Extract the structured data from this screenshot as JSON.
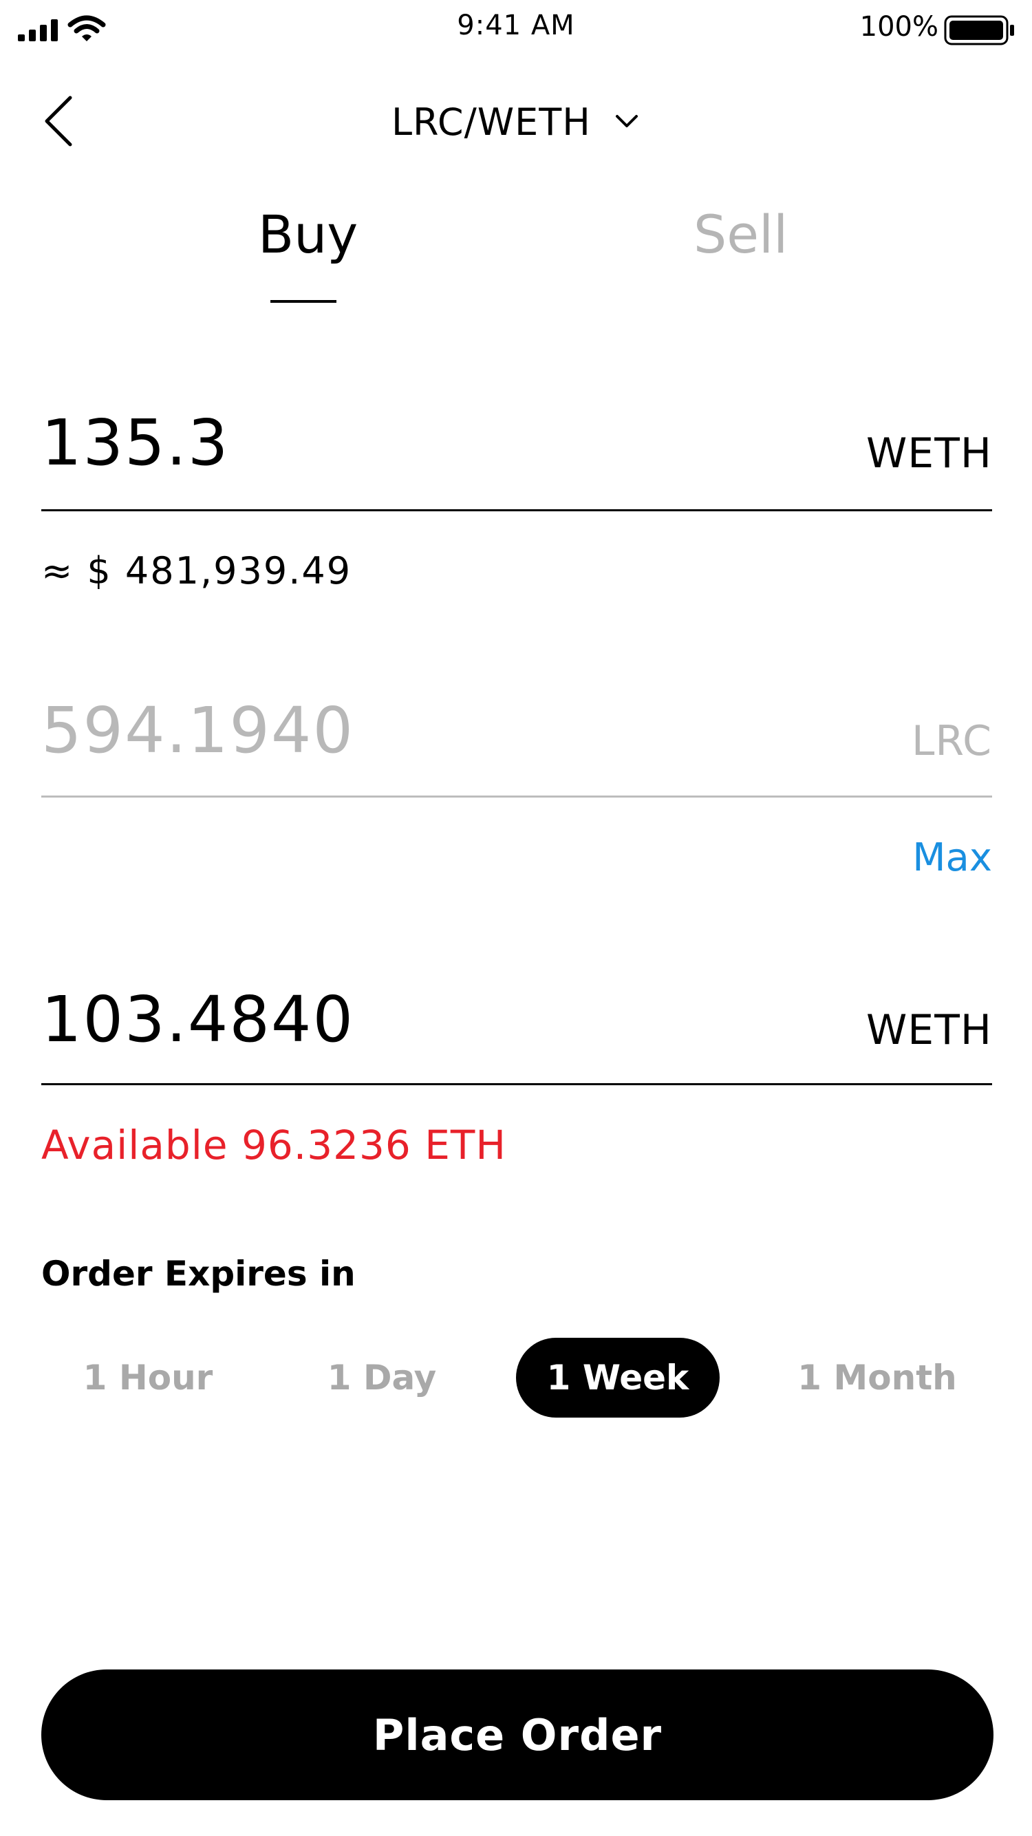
{
  "status_bar": {
    "time": "9:41 AM",
    "battery_percent": "100%",
    "icons": [
      "signal-icon",
      "wifi-icon",
      "battery-icon"
    ]
  },
  "nav": {
    "back_icon": "chevron-left-icon",
    "pair": "LRC/WETH",
    "pair_icon": "chevron-down-icon"
  },
  "tabs": {
    "items": [
      {
        "label": "Buy",
        "active": true
      },
      {
        "label": "Sell",
        "active": false
      }
    ]
  },
  "form": {
    "price": {
      "value": "135.3",
      "unit": "WETH"
    },
    "usd_estimate": "≈ $ 481,939.49",
    "amount": {
      "placeholder": "594.1940",
      "unit": "LRC"
    },
    "max_label": "Max",
    "total": {
      "value": "103.4840",
      "unit": "WETH"
    },
    "available": "Available 96.3236 ETH"
  },
  "expiry": {
    "label": "Order Expires in",
    "options": [
      {
        "label": "1 Hour",
        "selected": false
      },
      {
        "label": "1 Day",
        "selected": false
      },
      {
        "label": "1 Week",
        "selected": true
      },
      {
        "label": "1 Month",
        "selected": false
      }
    ]
  },
  "actions": {
    "place_order": "Place Order"
  },
  "colors": {
    "accent_blue": "#1a8fe0",
    "error_red": "#e8212a",
    "inactive_gray": "#a9a9a9",
    "primary": "#000000"
  }
}
